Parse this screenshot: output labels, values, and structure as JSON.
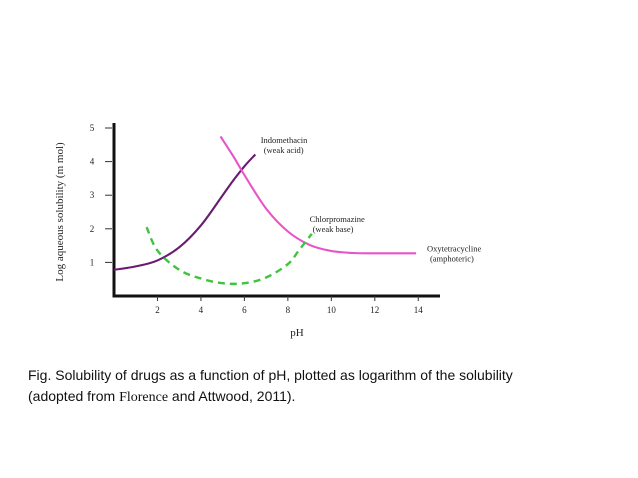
{
  "chart_data": {
    "type": "line",
    "xlabel": "pH",
    "ylabel": "Log aqueous solubility (m mol)",
    "xlim": [
      0,
      15
    ],
    "ylim": [
      0,
      5
    ],
    "x_ticks": [
      2,
      4,
      6,
      8,
      10,
      12,
      14
    ],
    "y_ticks": [
      1,
      2,
      3,
      4,
      5
    ],
    "grid": false,
    "legend": "none",
    "series": [
      {
        "color": "#6a1a72",
        "dash": "solid",
        "x": [
          0,
          1,
          2,
          3,
          4,
          5,
          5.5,
          6,
          6.5
        ],
        "y": [
          0.78,
          0.88,
          1.06,
          1.45,
          2.1,
          3.0,
          3.45,
          3.86,
          4.21
        ]
      },
      {
        "color": "#e754c8",
        "dash": "solid",
        "x": [
          4.9,
          5.5,
          6,
          7,
          8,
          9,
          10,
          11,
          12,
          13,
          13.9
        ],
        "y": [
          4.75,
          4.15,
          3.6,
          2.6,
          1.92,
          1.52,
          1.34,
          1.28,
          1.27,
          1.27,
          1.27
        ]
      },
      {
        "color": "#3ec43e",
        "dash": "dashed",
        "x": [
          1.5,
          2,
          3,
          4,
          5,
          6,
          7,
          8,
          8.5,
          9.1
        ],
        "y": [
          2.05,
          1.35,
          0.78,
          0.52,
          0.38,
          0.38,
          0.55,
          0.95,
          1.35,
          1.85
        ]
      }
    ],
    "annotations": [
      {
        "lines": [
          "Indomethacin",
          "(weak acid)"
        ],
        "x": 6.75,
        "y": 4.55
      },
      {
        "lines": [
          "Chlorpromazine",
          "(weak base)"
        ],
        "x": 9.0,
        "y": 2.2
      },
      {
        "lines": [
          "Oxytetracycline",
          "(amphoteric)"
        ],
        "x": 14.4,
        "y": 1.32
      }
    ]
  },
  "caption": {
    "line1": "Fig. Solubility of drugs as a function of pH, plotted as logarithm of the solubility",
    "line2_before": "(adopted from ",
    "line2_serif": "Florence",
    "line2_after": " and Attwood, 2011)."
  }
}
